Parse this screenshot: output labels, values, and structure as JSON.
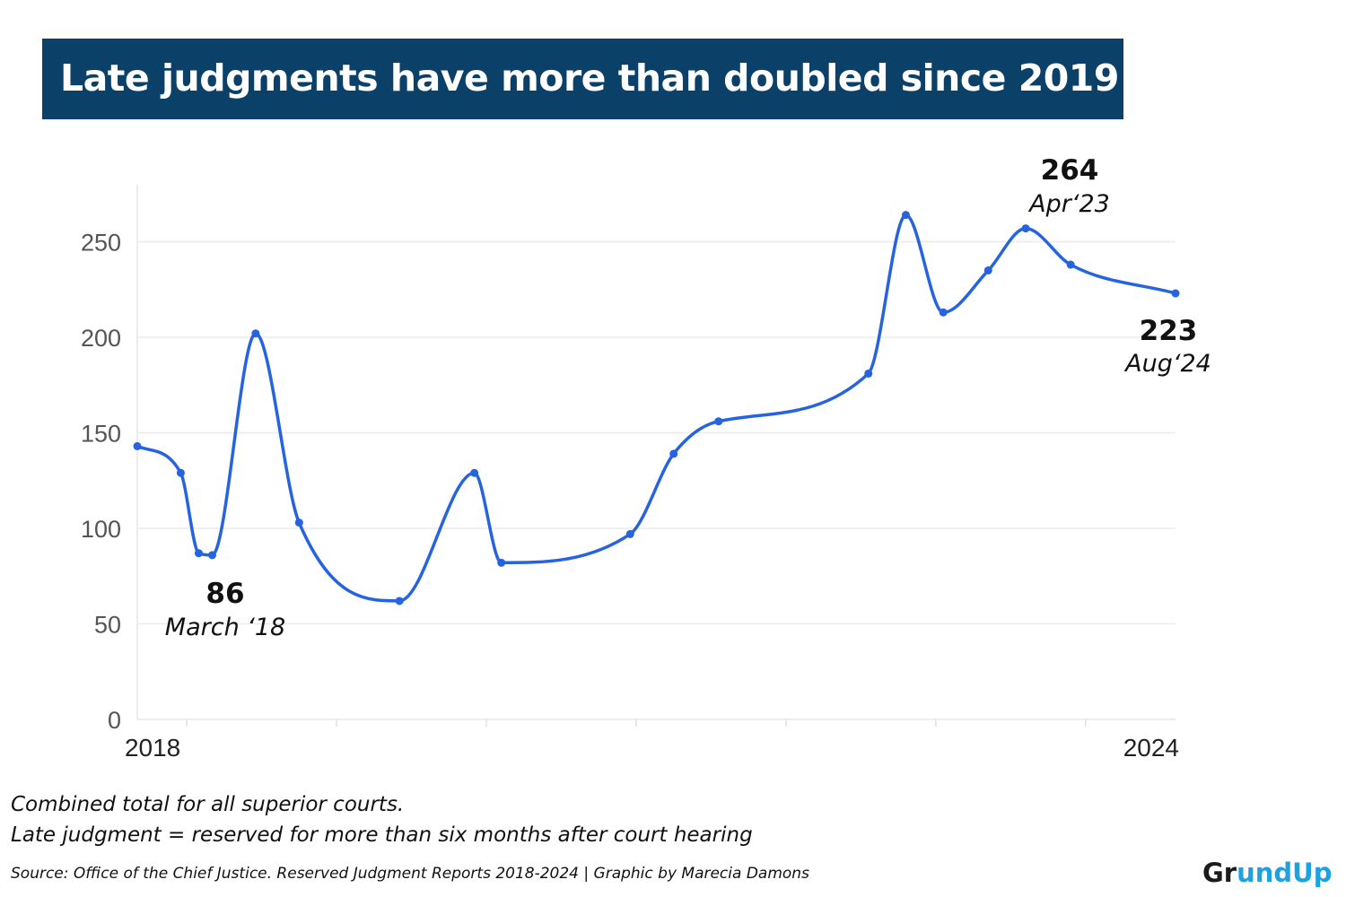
{
  "title": "Late judgments have more than doubled since 2019",
  "notes": {
    "line1": "Combined total for all superior courts.",
    "line2": "Late judgment = reserved for more than six months after court hearing"
  },
  "source": "Source: Office of the Chief Justice. Reserved Judgment Reports 2018-2024 | Graphic by Marecia Damons",
  "logo": {
    "part1": "Gr",
    "part2": "undUp"
  },
  "colors": {
    "title_bg": "#0b4169",
    "line": "#2563e0",
    "grid": "#ebebeb",
    "logo_accent": "#1da1e2"
  },
  "chart_data": {
    "type": "line",
    "title": "Late judgments have more than doubled since 2019",
    "xlabel": "",
    "ylabel": "",
    "ylim": [
      0,
      280
    ],
    "yticks": [
      0,
      50,
      100,
      150,
      200,
      250
    ],
    "x_tick_labels": [
      {
        "x": 2018.0,
        "label": "2018"
      },
      {
        "x": 2024.6,
        "label": "2024"
      }
    ],
    "xlim": [
      2017.67,
      2024.6
    ],
    "x": [
      2017.67,
      2017.96,
      2018.08,
      2018.17,
      2018.46,
      2018.75,
      2019.42,
      2019.92,
      2020.1,
      2020.96,
      2021.25,
      2021.55,
      2022.55,
      2022.8,
      2023.05,
      2023.35,
      2023.6,
      2023.9,
      2024.6
    ],
    "values": [
      143,
      129,
      87,
      86,
      202,
      103,
      62,
      129,
      82,
      97,
      139,
      156,
      181,
      264,
      213,
      235,
      257,
      238,
      223
    ],
    "grid": true,
    "legend": "none",
    "annotations": [
      {
        "value": "86",
        "label": "March ‘18",
        "x": 2018.17,
        "y": 86
      },
      {
        "value": "264",
        "label": "Apr‘23",
        "x": 2022.8,
        "y": 264
      },
      {
        "value": "223",
        "label": "Aug‘24",
        "x": 2024.6,
        "y": 223
      }
    ]
  }
}
